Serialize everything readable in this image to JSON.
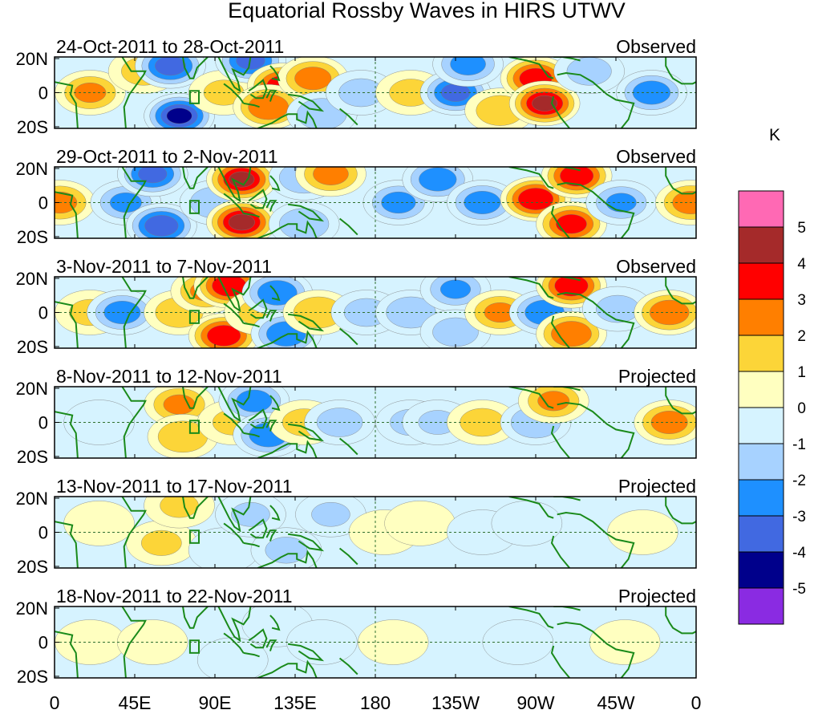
{
  "chart_data": {
    "type": "heatmap",
    "title": "Equatorial Rossby Waves in HIRS UTWV",
    "units": "K",
    "x_ticks": [
      "0",
      "45E",
      "90E",
      "135E",
      "180",
      "135W",
      "90W",
      "45W",
      "0"
    ],
    "x_lon_values": [
      0,
      45,
      90,
      135,
      180,
      225,
      270,
      315,
      360
    ],
    "y_ticks": [
      "20N",
      "0",
      "20S"
    ],
    "ylim": [
      -20,
      20
    ],
    "box_marker": {
      "lon": [
        76,
        81
      ],
      "lat": [
        -6,
        1
      ]
    },
    "colorbar": {
      "labels": [
        "5",
        "4",
        "3",
        "2",
        "1",
        "0",
        "-1",
        "-2",
        "-3",
        "-4",
        "-5"
      ],
      "levels": [
        5,
        4,
        3,
        2,
        1,
        0,
        -1,
        -2,
        -3,
        -4,
        -5
      ],
      "colors": [
        "#ff69b4",
        "#a52a2a",
        "#ff0000",
        "#ff7f00",
        "#fcd538",
        "#ffffc0",
        "#d6f3ff",
        "#a7d2ff",
        "#1e90ff",
        "#4169e1",
        "#00008b",
        "#8a2be2"
      ]
    },
    "panels": [
      {
        "date_range": "24-Oct-2011 to 28-Oct-2011",
        "status": "Observed",
        "anomalies": [
          {
            "lon": 20,
            "lat": 0,
            "value": 2.2
          },
          {
            "lon": 50,
            "lat": 12,
            "value": 1.5
          },
          {
            "lon": 65,
            "lat": 15,
            "value": -3.5
          },
          {
            "lon": 70,
            "lat": -13,
            "value": -4.2
          },
          {
            "lon": 95,
            "lat": 0,
            "value": 1.2
          },
          {
            "lon": 110,
            "lat": 18,
            "value": -3.3
          },
          {
            "lon": 128,
            "lat": 4,
            "value": 3.6
          },
          {
            "lon": 120,
            "lat": -8,
            "value": 3.0
          },
          {
            "lon": 145,
            "lat": 8,
            "value": 2.6
          },
          {
            "lon": 150,
            "lat": -12,
            "value": -2.0
          },
          {
            "lon": 172,
            "lat": 0,
            "value": -1.5
          },
          {
            "lon": 200,
            "lat": 0,
            "value": 1.4
          },
          {
            "lon": 225,
            "lat": 0,
            "value": -3.3
          },
          {
            "lon": 232,
            "lat": 16,
            "value": -2.5
          },
          {
            "lon": 250,
            "lat": -10,
            "value": 1.8
          },
          {
            "lon": 270,
            "lat": 8,
            "value": 3.7
          },
          {
            "lon": 275,
            "lat": -6,
            "value": 4.2
          },
          {
            "lon": 300,
            "lat": 12,
            "value": -1.5
          },
          {
            "lon": 335,
            "lat": 0,
            "value": -2.7
          }
        ]
      },
      {
        "date_range": "29-Oct-2011 to 2-Nov-2011",
        "status": "Observed",
        "anomalies": [
          {
            "lon": 3,
            "lat": 0,
            "value": 2.4
          },
          {
            "lon": 40,
            "lat": 0,
            "value": -2.2
          },
          {
            "lon": 55,
            "lat": 16,
            "value": -3.3
          },
          {
            "lon": 60,
            "lat": -13,
            "value": -3.8
          },
          {
            "lon": 90,
            "lat": 0,
            "value": -2.0
          },
          {
            "lon": 105,
            "lat": 13,
            "value": 4.2
          },
          {
            "lon": 105,
            "lat": -11,
            "value": 4.3
          },
          {
            "lon": 140,
            "lat": 14,
            "value": -2.0
          },
          {
            "lon": 140,
            "lat": -12,
            "value": -2.0
          },
          {
            "lon": 155,
            "lat": 16,
            "value": 2.5
          },
          {
            "lon": 193,
            "lat": 0,
            "value": -2.4
          },
          {
            "lon": 215,
            "lat": 13,
            "value": -2.7
          },
          {
            "lon": 240,
            "lat": 0,
            "value": -2.6
          },
          {
            "lon": 270,
            "lat": 2,
            "value": 4.0
          },
          {
            "lon": 293,
            "lat": 15,
            "value": 3.8
          },
          {
            "lon": 290,
            "lat": -12,
            "value": 3.5
          },
          {
            "lon": 318,
            "lat": 0,
            "value": -2.1
          },
          {
            "lon": 357,
            "lat": 0,
            "value": 2.6
          }
        ]
      },
      {
        "date_range": "3-Nov-2011 to 7-Nov-2011",
        "status": "Observed",
        "anomalies": [
          {
            "lon": 20,
            "lat": 0,
            "value": 1.3
          },
          {
            "lon": 38,
            "lat": 0,
            "value": -2.6
          },
          {
            "lon": 70,
            "lat": 0,
            "value": 1.8
          },
          {
            "lon": 85,
            "lat": 12,
            "value": 2.2
          },
          {
            "lon": 98,
            "lat": 15,
            "value": 3.9
          },
          {
            "lon": 95,
            "lat": -13,
            "value": 3.8
          },
          {
            "lon": 115,
            "lat": 0,
            "value": 1.3
          },
          {
            "lon": 125,
            "lat": 11,
            "value": -2.9
          },
          {
            "lon": 130,
            "lat": -12,
            "value": -2.9
          },
          {
            "lon": 148,
            "lat": 0,
            "value": 2.0
          },
          {
            "lon": 175,
            "lat": 0,
            "value": -1.5
          },
          {
            "lon": 200,
            "lat": 0,
            "value": -2.0
          },
          {
            "lon": 225,
            "lat": 13,
            "value": -2.1
          },
          {
            "lon": 225,
            "lat": -11,
            "value": -1.6
          },
          {
            "lon": 250,
            "lat": 0,
            "value": 2.2
          },
          {
            "lon": 275,
            "lat": 0,
            "value": -2.9
          },
          {
            "lon": 290,
            "lat": 15,
            "value": 3.8
          },
          {
            "lon": 290,
            "lat": -12,
            "value": 3.0
          },
          {
            "lon": 316,
            "lat": 2,
            "value": -1.4
          },
          {
            "lon": 345,
            "lat": 0,
            "value": 2.9
          }
        ]
      },
      {
        "date_range": "8-Nov-2011 to 12-Nov-2011",
        "status": "Projected",
        "anomalies": [
          {
            "lon": 25,
            "lat": 0,
            "value": -0.5
          },
          {
            "lon": 70,
            "lat": 10,
            "value": 2.2
          },
          {
            "lon": 72,
            "lat": -8,
            "value": 2.0
          },
          {
            "lon": 100,
            "lat": 0,
            "value": 1.2
          },
          {
            "lon": 112,
            "lat": 12,
            "value": -2.5
          },
          {
            "lon": 120,
            "lat": -7,
            "value": -2.8
          },
          {
            "lon": 140,
            "lat": 0,
            "value": 1.4
          },
          {
            "lon": 160,
            "lat": 0,
            "value": -1.6
          },
          {
            "lon": 200,
            "lat": 0,
            "value": -1.3
          },
          {
            "lon": 215,
            "lat": 0,
            "value": -1.1
          },
          {
            "lon": 240,
            "lat": 0,
            "value": 1.5
          },
          {
            "lon": 270,
            "lat": 0,
            "value": -2.0
          },
          {
            "lon": 280,
            "lat": 12,
            "value": 2.2
          },
          {
            "lon": 345,
            "lat": 0,
            "value": 2.6
          }
        ]
      },
      {
        "date_range": "13-Nov-2011 to 17-Nov-2011",
        "status": "Projected",
        "anomalies": [
          {
            "lon": 25,
            "lat": 5,
            "value": 0.6
          },
          {
            "lon": 60,
            "lat": -6,
            "value": 1.2
          },
          {
            "lon": 70,
            "lat": 15,
            "value": 1.1
          },
          {
            "lon": 95,
            "lat": -10,
            "value": -0.8
          },
          {
            "lon": 110,
            "lat": 10,
            "value": -1.1
          },
          {
            "lon": 130,
            "lat": -10,
            "value": -1.3
          },
          {
            "lon": 155,
            "lat": 10,
            "value": -1.1
          },
          {
            "lon": 185,
            "lat": 0,
            "value": 0.4
          },
          {
            "lon": 205,
            "lat": 5,
            "value": 0.4
          },
          {
            "lon": 240,
            "lat": 0,
            "value": -0.5
          },
          {
            "lon": 265,
            "lat": 5,
            "value": -0.4
          },
          {
            "lon": 330,
            "lat": 0,
            "value": 0.3
          }
        ]
      },
      {
        "date_range": "18-Nov-2011 to 22-Nov-2011",
        "status": "Projected",
        "anomalies": [
          {
            "lon": 20,
            "lat": 0,
            "value": 0.6
          },
          {
            "lon": 55,
            "lat": 0,
            "value": 0.7
          },
          {
            "lon": 100,
            "lat": -10,
            "value": -0.6
          },
          {
            "lon": 125,
            "lat": 10,
            "value": -0.7
          },
          {
            "lon": 150,
            "lat": 0,
            "value": -0.5
          },
          {
            "lon": 190,
            "lat": 0,
            "value": 0.5
          },
          {
            "lon": 260,
            "lat": 0,
            "value": -0.3
          },
          {
            "lon": 320,
            "lat": 0,
            "value": 0.4
          }
        ]
      }
    ]
  }
}
